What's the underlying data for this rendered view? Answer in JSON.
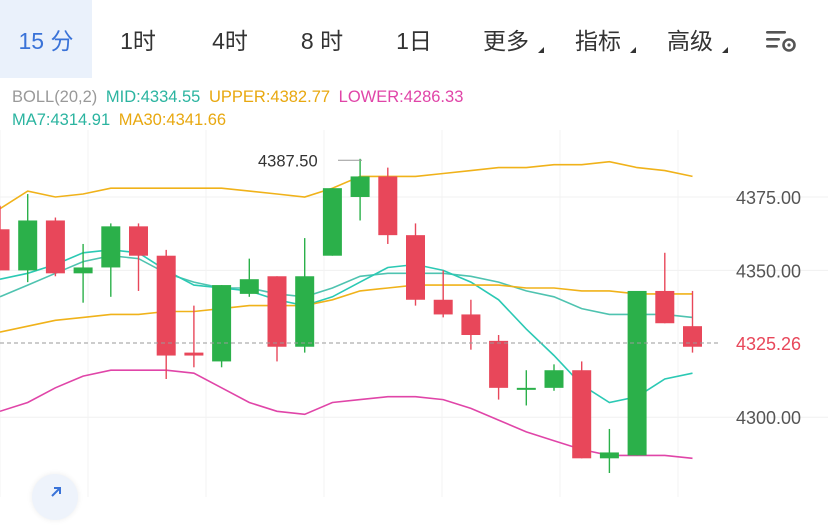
{
  "tabs": [
    {
      "label": "15 分",
      "active": true,
      "dropdown": false
    },
    {
      "label": "1时",
      "active": false,
      "dropdown": false
    },
    {
      "label": "4时",
      "active": false,
      "dropdown": false
    },
    {
      "label": "8 时",
      "active": false,
      "dropdown": false
    },
    {
      "label": "1日",
      "active": false,
      "dropdown": false
    },
    {
      "label": "更多",
      "active": false,
      "dropdown": true
    },
    {
      "label": "指标",
      "active": false,
      "dropdown": true
    },
    {
      "label": "高级",
      "active": false,
      "dropdown": true
    }
  ],
  "settings_icon": "chart-settings-icon",
  "indicators": {
    "boll": {
      "name": "BOLL(20,2)",
      "mid": "MID:4334.55",
      "upper": "UPPER:4382.77",
      "lower": "LOWER:4286.33"
    },
    "ma": {
      "ma7": "MA7:4314.91",
      "ma30": "MA30:4341.66"
    }
  },
  "colors": {
    "up": "#2bb04a",
    "down": "#e8475a",
    "mid": "#4fc3b0",
    "upper": "#f0b21a",
    "lower": "#e045a8",
    "ma7": "#2bc9b4",
    "ma30": "#f0b21a",
    "text": "#333333",
    "axis_text": "#555555",
    "active_tab": "#3a73d8"
  },
  "chart_data": {
    "type": "candlestick",
    "y_ticks": [
      {
        "value": 4375,
        "label": "4375.00"
      },
      {
        "value": 4350,
        "label": "4350.00"
      },
      {
        "value": 4300,
        "label": "4300.00"
      }
    ],
    "ylim": [
      4281,
      4391
    ],
    "current_price": {
      "value": 4325.26,
      "label": "4325.26"
    },
    "max_label": {
      "value": 4387.5,
      "label": "4387.50"
    },
    "candles": [
      {
        "o": 4364,
        "h": 4372,
        "l": 4350,
        "c": 4350
      },
      {
        "o": 4350,
        "h": 4376,
        "l": 4346,
        "c": 4367
      },
      {
        "o": 4367,
        "h": 4368,
        "l": 4348,
        "c": 4349
      },
      {
        "o": 4349,
        "h": 4359,
        "l": 4339,
        "c": 4351
      },
      {
        "o": 4351,
        "h": 4366,
        "l": 4341,
        "c": 4365
      },
      {
        "o": 4365,
        "h": 4366,
        "l": 4343,
        "c": 4355
      },
      {
        "o": 4355,
        "h": 4357,
        "l": 4313,
        "c": 4321
      },
      {
        "o": 4322,
        "h": 4338,
        "l": 4317,
        "c": 4321
      },
      {
        "o": 4319,
        "h": 4345,
        "l": 4317,
        "c": 4345
      },
      {
        "o": 4342,
        "h": 4354,
        "l": 4341,
        "c": 4347
      },
      {
        "o": 4348,
        "h": 4348,
        "l": 4319,
        "c": 4324
      },
      {
        "o": 4324,
        "h": 4361,
        "l": 4322,
        "c": 4348
      },
      {
        "o": 4355,
        "h": 4378,
        "l": 4355,
        "c": 4378
      },
      {
        "o": 4375,
        "h": 4388,
        "l": 4367,
        "c": 4382
      },
      {
        "o": 4382,
        "h": 4385,
        "l": 4359,
        "c": 4362
      },
      {
        "o": 4362,
        "h": 4366,
        "l": 4338,
        "c": 4340
      },
      {
        "o": 4340,
        "h": 4350,
        "l": 4334,
        "c": 4335
      },
      {
        "o": 4335,
        "h": 4340,
        "l": 4323,
        "c": 4328
      },
      {
        "o": 4326,
        "h": 4328,
        "l": 4306,
        "c": 4310
      },
      {
        "o": 4310,
        "h": 4316,
        "l": 4304,
        "c": 4310
      },
      {
        "o": 4310,
        "h": 4318,
        "l": 4309,
        "c": 4316
      },
      {
        "o": 4316,
        "h": 4319,
        "l": 4286,
        "c": 4286
      },
      {
        "o": 4286,
        "h": 4296,
        "l": 4281,
        "c": 4288
      },
      {
        "o": 4287,
        "h": 4343,
        "l": 4287,
        "c": 4343
      },
      {
        "o": 4343,
        "h": 4356,
        "l": 4332,
        "c": 4332
      },
      {
        "o": 4331,
        "h": 4343,
        "l": 4322,
        "c": 4324
      }
    ],
    "series": [
      {
        "key": "upper",
        "values": [
          4371,
          4377,
          4375,
          4376,
          4378,
          4378,
          4378,
          4378,
          4378,
          4377,
          4376,
          4375,
          4378,
          4382,
          4382,
          4382,
          4383,
          4384,
          4385,
          4385,
          4386,
          4386,
          4387,
          4385,
          4384,
          4382
        ]
      },
      {
        "key": "mid",
        "values": [
          4341,
          4345,
          4349,
          4353,
          4355,
          4354,
          4349,
          4346,
          4344,
          4344,
          4342,
          4341,
          4344,
          4348,
          4349,
          4349,
          4349,
          4348,
          4346,
          4343,
          4341,
          4337,
          4335,
          4335,
          4335,
          4334
        ]
      },
      {
        "key": "lower",
        "values": [
          4302,
          4305,
          4310,
          4314,
          4316,
          4316,
          4316,
          4315,
          4310,
          4305,
          4302,
          4301,
          4305,
          4306,
          4307,
          4307,
          4306,
          4303,
          4299,
          4295,
          4292,
          4289,
          4287,
          4287,
          4287,
          4286
        ]
      },
      {
        "key": "ma7",
        "values": [
          4347,
          4349,
          4352,
          4356,
          4357,
          4356,
          4350,
          4345,
          4344,
          4343,
          4340,
          4338,
          4341,
          4346,
          4351,
          4352,
          4350,
          4346,
          4340,
          4330,
          4321,
          4311,
          4305,
          4307,
          4313,
          4315
        ]
      },
      {
        "key": "ma30",
        "values": [
          4329,
          4331,
          4333,
          4334,
          4335,
          4335,
          4336,
          4336,
          4337,
          4338,
          4338,
          4338,
          4340,
          4343,
          4344,
          4345,
          4345,
          4345,
          4345,
          4344,
          4344,
          4343,
          4343,
          4342,
          4342,
          4342
        ]
      }
    ],
    "grid": true
  }
}
